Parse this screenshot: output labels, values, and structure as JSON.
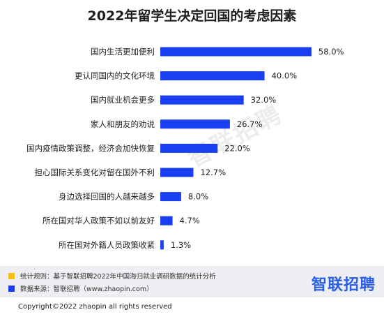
{
  "chart_data": {
    "type": "bar",
    "orientation": "horizontal",
    "title": "2022年留学生决定回国的考虑因素",
    "categories": [
      "国内生活更加便利",
      "更认同国内的文化环境",
      "国内就业机会更多",
      "家人和朋友的劝说",
      "国内疫情政策调整，经济会加快恢复",
      "担心国际关系变化对留在国外不利",
      "身边选择回国的人越来越多",
      "所在国对华人政策不如以前友好",
      "所在国对外籍人员政策收紧"
    ],
    "values": [
      58.0,
      40.0,
      32.0,
      26.7,
      22.0,
      12.7,
      8.0,
      4.7,
      1.3
    ],
    "value_labels": [
      "58.0%",
      "40.0%",
      "32.0%",
      "26.7%",
      "22.0%",
      "12.7%",
      "8.0%",
      "4.7%",
      "1.3%"
    ],
    "bar_color": "#1a3ff0",
    "grid": false
  },
  "watermark": "智联招聘",
  "footer": {
    "note1": "统计规则：基于智联招聘2022年中国海归就业调研数据的统计分析",
    "note2": "数据来源：智联招聘（www.zhaopin.com）",
    "note1_color": "#f2c21b",
    "note2_color": "#1a3ff0",
    "brand": "智联招聘"
  },
  "copyright": "Copyright©2022 zhaopin all rights reserved"
}
